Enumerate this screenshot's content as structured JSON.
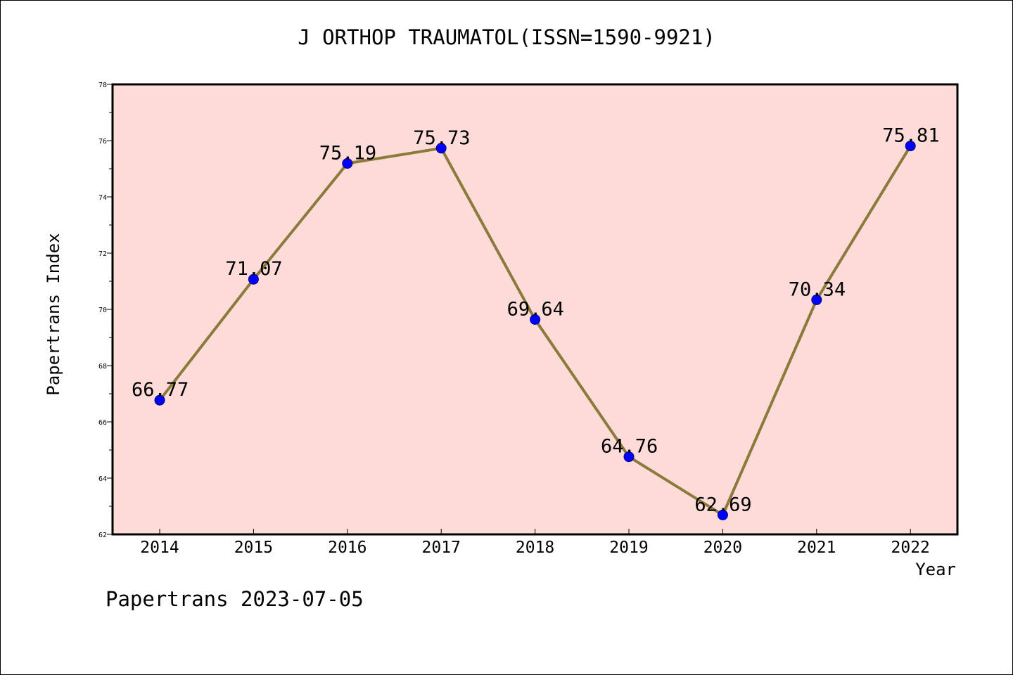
{
  "title": "J ORTHOP TRAUMATOL(ISSN=1590-9921)",
  "footer": "Papertrans 2023-07-05",
  "colors": {
    "plot_background": "#fddbd9",
    "line": "#8c7a3a",
    "marker": "#0000ff",
    "axis": "#000000"
  },
  "chart_data": {
    "type": "line",
    "title": "J ORTHOP TRAUMATOL(ISSN=1590-9921)",
    "xlabel": "Year",
    "ylabel": "Papertrans Index",
    "categories": [
      "2014",
      "2015",
      "2016",
      "2017",
      "2018",
      "2019",
      "2020",
      "2021",
      "2022"
    ],
    "values": [
      66.77,
      71.07,
      75.19,
      75.73,
      69.64,
      64.76,
      62.69,
      70.34,
      75.81
    ],
    "data_labels": [
      "66.77",
      "71.07",
      "75.19",
      "75.73",
      "69.64",
      "64.76",
      "62.69",
      "70.34",
      "75.81"
    ],
    "ylim": [
      62,
      78
    ],
    "yticks": [
      "62",
      "64",
      "66",
      "68",
      "70",
      "72",
      "74",
      "76",
      "78"
    ],
    "grid": false,
    "legend": "none"
  }
}
